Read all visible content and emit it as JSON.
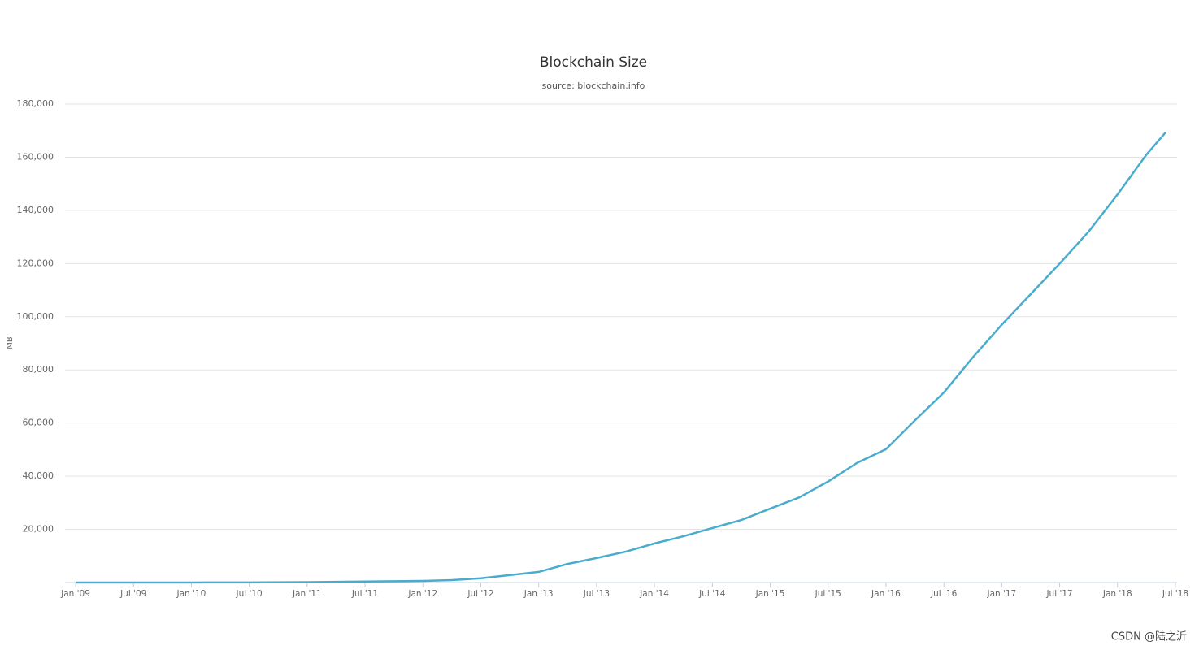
{
  "chart_data": {
    "type": "line",
    "title": "Blockchain Size",
    "subtitle": "source: blockchain.info",
    "y_label": "MB",
    "x": [
      "2009-01",
      "2009-07",
      "2010-01",
      "2010-07",
      "2011-01",
      "2011-07",
      "2012-01",
      "2012-04",
      "2012-07",
      "2012-10",
      "2013-01",
      "2013-04",
      "2013-07",
      "2013-10",
      "2014-01",
      "2014-04",
      "2014-07",
      "2014-10",
      "2015-01",
      "2015-04",
      "2015-07",
      "2015-10",
      "2016-01",
      "2016-04",
      "2016-07",
      "2016-10",
      "2017-01",
      "2017-04",
      "2017-07",
      "2017-10",
      "2018-01",
      "2018-04",
      "2018-06"
    ],
    "series": [
      {
        "name": "Blockchain Size",
        "color": "#4aaccd",
        "values": [
          0,
          0,
          10,
          50,
          150,
          400,
          600,
          900,
          1600,
          2800,
          4000,
          7000,
          9200,
          11600,
          14700,
          17400,
          20500,
          23500,
          27800,
          32000,
          38000,
          45000,
          50150,
          61000,
          71500,
          84700,
          97000,
          108500,
          120000,
          132000,
          146000,
          161000,
          169400
        ]
      }
    ],
    "ylim": [
      0,
      180000
    ],
    "yticks": [
      {
        "value": 20000,
        "label": "20,000"
      },
      {
        "value": 40000,
        "label": "40,000"
      },
      {
        "value": 60000,
        "label": "60,000"
      },
      {
        "value": 80000,
        "label": "80,000"
      },
      {
        "value": 100000,
        "label": "100,000"
      },
      {
        "value": 120000,
        "label": "120,000"
      },
      {
        "value": 140000,
        "label": "140,000"
      },
      {
        "value": 160000,
        "label": "160,000"
      },
      {
        "value": 180000,
        "label": "180,000"
      }
    ],
    "xticks": [
      {
        "value": "2009-01",
        "label": "Jan '09"
      },
      {
        "value": "2009-07",
        "label": "Jul '09"
      },
      {
        "value": "2010-01",
        "label": "Jan '10"
      },
      {
        "value": "2010-07",
        "label": "Jul '10"
      },
      {
        "value": "2011-01",
        "label": "Jan '11"
      },
      {
        "value": "2011-07",
        "label": "Jul '11"
      },
      {
        "value": "2012-01",
        "label": "Jan '12"
      },
      {
        "value": "2012-07",
        "label": "Jul '12"
      },
      {
        "value": "2013-01",
        "label": "Jan '13"
      },
      {
        "value": "2013-07",
        "label": "Jul '13"
      },
      {
        "value": "2014-01",
        "label": "Jan '14"
      },
      {
        "value": "2014-07",
        "label": "Jul '14"
      },
      {
        "value": "2015-01",
        "label": "Jan '15"
      },
      {
        "value": "2015-07",
        "label": "Jul '15"
      },
      {
        "value": "2016-01",
        "label": "Jan '16"
      },
      {
        "value": "2016-07",
        "label": "Jul '16"
      },
      {
        "value": "2017-01",
        "label": "Jan '17"
      },
      {
        "value": "2017-07",
        "label": "Jul '17"
      },
      {
        "value": "2018-01",
        "label": "Jan '18"
      },
      {
        "value": "2018-07",
        "label": "Jul '18"
      }
    ],
    "grid": true
  },
  "watermark": "CSDN @陆之沂"
}
